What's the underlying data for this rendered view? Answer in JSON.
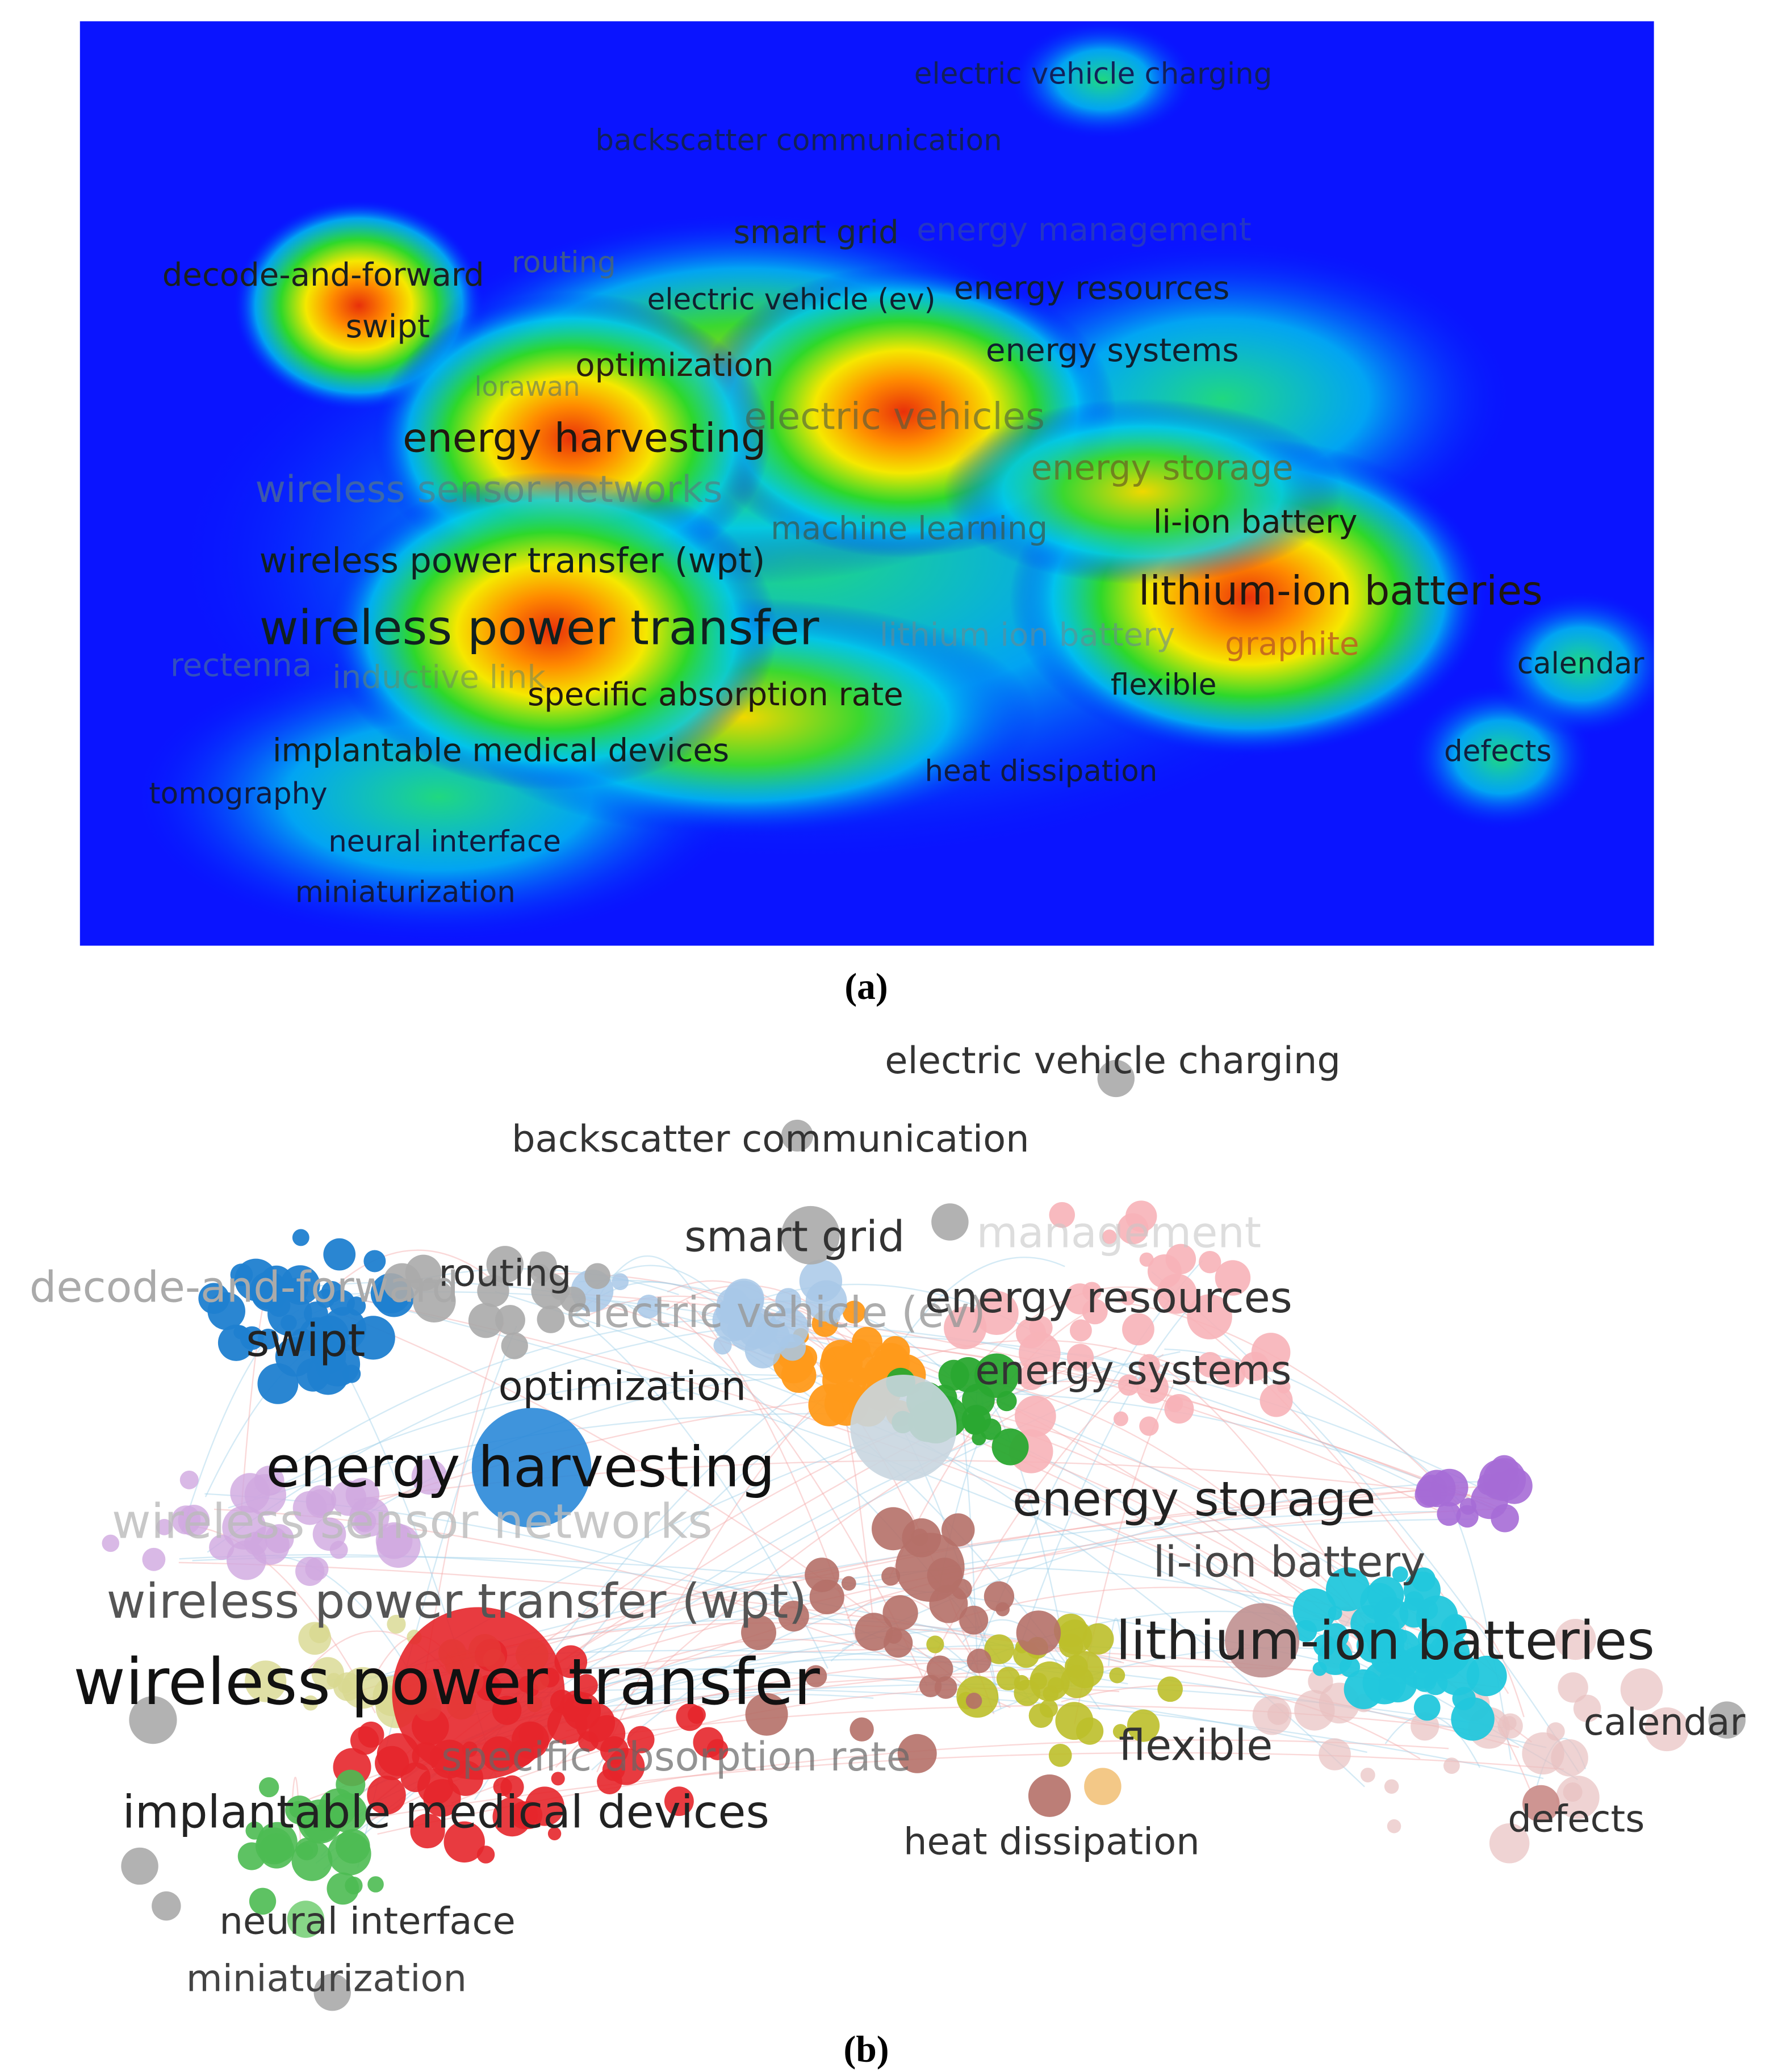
{
  "panels": [
    {
      "caption": "(a)",
      "labels": [
        "electric vehicle charging",
        "backscatter communication",
        "smart grid",
        "energy management",
        "routing",
        "decode-and-forward",
        "electric vehicle (ev)",
        "energy resources",
        "swipt",
        "energy systems",
        "optimization",
        "lorawan",
        "electric vehicles",
        "energy harvesting",
        "energy storage",
        "wireless sensor networks",
        "machine learning",
        "li-ion battery",
        "wireless power transfer (wpt)",
        "lithium-ion batteries",
        "wireless power transfer",
        "lithium ion battery",
        "graphite",
        "calendar",
        "rectenna",
        "inductive link",
        "specific absorption rate",
        "flexible",
        "implantable medical devices",
        "heat dissipation",
        "defects",
        "tomography",
        "neural interface",
        "miniaturization"
      ]
    },
    {
      "caption": "(b)",
      "labels": [
        "electric vehicle charging",
        "backscatter communication",
        "smart grid",
        "management",
        "routing",
        "decode-and-forward",
        "electric vehicle (ev)",
        "energy resources",
        "swipt",
        "energy systems",
        "optimization",
        "energy harvesting",
        "energy storage",
        "wireless sensor networks",
        "li-ion battery",
        "wireless power transfer (wpt)",
        "lithium-ion batteries",
        "wireless power transfer",
        "calendar",
        "flexible",
        "specific absorption rate",
        "implantable medical devices",
        "defects",
        "heat dissipation",
        "neural interface",
        "miniaturization"
      ]
    }
  ]
}
